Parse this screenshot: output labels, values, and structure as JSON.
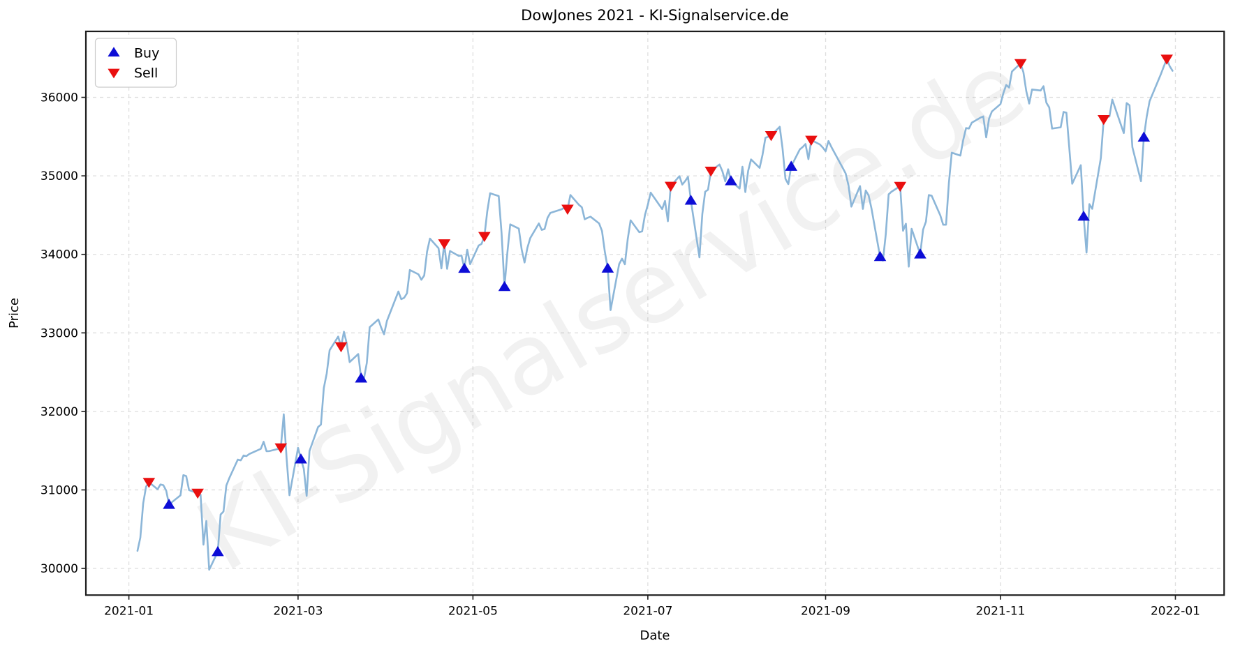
{
  "chart_data": {
    "type": "line",
    "title": "DowJones 2021 - KI-Signalservice.de",
    "xlabel": "Date",
    "ylabel": "Price",
    "watermark": "KI-Signalservice.de",
    "grid": true,
    "legend_position": "upper-left",
    "legend": [
      {
        "label": "Buy",
        "marker": "triangle-up-icon",
        "color": "#0d0dd6"
      },
      {
        "label": "Sell",
        "marker": "triangle-down-icon",
        "color": "#e90f0f"
      }
    ],
    "line_color": "#8cb6d8",
    "xlim": [
      "2020-12-17",
      "2022-01-18"
    ],
    "ylim": [
      29660,
      36840
    ],
    "x_ticks": [
      {
        "date": "2021-01-01",
        "label": "2021-01"
      },
      {
        "date": "2021-03-01",
        "label": "2021-03"
      },
      {
        "date": "2021-05-01",
        "label": "2021-05"
      },
      {
        "date": "2021-07-01",
        "label": "2021-07"
      },
      {
        "date": "2021-09-01",
        "label": "2021-09"
      },
      {
        "date": "2021-11-01",
        "label": "2021-11"
      },
      {
        "date": "2022-01-01",
        "label": "2022-01"
      }
    ],
    "y_ticks": [
      {
        "value": 30000,
        "label": "30000"
      },
      {
        "value": 31000,
        "label": "31000"
      },
      {
        "value": 32000,
        "label": "32000"
      },
      {
        "value": 33000,
        "label": "33000"
      },
      {
        "value": 34000,
        "label": "34000"
      },
      {
        "value": 35000,
        "label": "35000"
      },
      {
        "value": 36000,
        "label": "36000"
      }
    ],
    "price_series": [
      [
        "2021-01-04",
        30224
      ],
      [
        "2021-01-05",
        30392
      ],
      [
        "2021-01-06",
        30829
      ],
      [
        "2021-01-07",
        31041
      ],
      [
        "2021-01-08",
        31098
      ],
      [
        "2021-01-11",
        31008
      ],
      [
        "2021-01-12",
        31069
      ],
      [
        "2021-01-13",
        31061
      ],
      [
        "2021-01-14",
        30992
      ],
      [
        "2021-01-15",
        30814
      ],
      [
        "2021-01-19",
        30931
      ],
      [
        "2021-01-20",
        31188
      ],
      [
        "2021-01-21",
        31176
      ],
      [
        "2021-01-22",
        30997
      ],
      [
        "2021-01-25",
        30960
      ],
      [
        "2021-01-26",
        30937
      ],
      [
        "2021-01-27",
        30303
      ],
      [
        "2021-01-28",
        30603
      ],
      [
        "2021-01-29",
        29983
      ],
      [
        "2021-02-01",
        30212
      ],
      [
        "2021-02-02",
        30687
      ],
      [
        "2021-02-03",
        30724
      ],
      [
        "2021-02-04",
        31056
      ],
      [
        "2021-02-05",
        31148
      ],
      [
        "2021-02-08",
        31386
      ],
      [
        "2021-02-09",
        31376
      ],
      [
        "2021-02-10",
        31438
      ],
      [
        "2021-02-11",
        31430
      ],
      [
        "2021-02-12",
        31458
      ],
      [
        "2021-02-16",
        31523
      ],
      [
        "2021-02-17",
        31613
      ],
      [
        "2021-02-18",
        31493
      ],
      [
        "2021-02-19",
        31494
      ],
      [
        "2021-02-22",
        31522
      ],
      [
        "2021-02-23",
        31537
      ],
      [
        "2021-02-24",
        31962
      ],
      [
        "2021-02-25",
        31402
      ],
      [
        "2021-02-26",
        30932
      ],
      [
        "2021-03-01",
        31536
      ],
      [
        "2021-03-02",
        31392
      ],
      [
        "2021-03-03",
        31270
      ],
      [
        "2021-03-04",
        30924
      ],
      [
        "2021-03-05",
        31496
      ],
      [
        "2021-03-08",
        31802
      ],
      [
        "2021-03-09",
        31833
      ],
      [
        "2021-03-10",
        32297
      ],
      [
        "2021-03-11",
        32486
      ],
      [
        "2021-03-12",
        32779
      ],
      [
        "2021-03-15",
        32953
      ],
      [
        "2021-03-16",
        32825
      ],
      [
        "2021-03-17",
        33015
      ],
      [
        "2021-03-18",
        32862
      ],
      [
        "2021-03-19",
        32628
      ],
      [
        "2021-03-22",
        32731
      ],
      [
        "2021-03-23",
        32423
      ],
      [
        "2021-03-24",
        32420
      ],
      [
        "2021-03-25",
        32619
      ],
      [
        "2021-03-26",
        33073
      ],
      [
        "2021-03-29",
        33171
      ],
      [
        "2021-03-30",
        33067
      ],
      [
        "2021-03-31",
        32982
      ],
      [
        "2021-04-01",
        33153
      ],
      [
        "2021-04-05",
        33527
      ],
      [
        "2021-04-06",
        33430
      ],
      [
        "2021-04-07",
        33446
      ],
      [
        "2021-04-08",
        33504
      ],
      [
        "2021-04-09",
        33801
      ],
      [
        "2021-04-12",
        33745
      ],
      [
        "2021-04-13",
        33677
      ],
      [
        "2021-04-14",
        33731
      ],
      [
        "2021-04-15",
        34036
      ],
      [
        "2021-04-16",
        34201
      ],
      [
        "2021-04-19",
        34078
      ],
      [
        "2021-04-20",
        33821
      ],
      [
        "2021-04-21",
        34137
      ],
      [
        "2021-04-22",
        33815
      ],
      [
        "2021-04-23",
        34043
      ],
      [
        "2021-04-26",
        33981
      ],
      [
        "2021-04-27",
        33985
      ],
      [
        "2021-04-28",
        33820
      ],
      [
        "2021-04-29",
        34060
      ],
      [
        "2021-04-30",
        33875
      ],
      [
        "2021-05-03",
        34113
      ],
      [
        "2021-05-04",
        34133
      ],
      [
        "2021-05-05",
        34230
      ],
      [
        "2021-05-06",
        34548
      ],
      [
        "2021-05-07",
        34778
      ],
      [
        "2021-05-10",
        34743
      ],
      [
        "2021-05-11",
        34269
      ],
      [
        "2021-05-12",
        33588
      ],
      [
        "2021-05-13",
        34021
      ],
      [
        "2021-05-14",
        34382
      ],
      [
        "2021-05-17",
        34328
      ],
      [
        "2021-05-18",
        34061
      ],
      [
        "2021-05-19",
        33896
      ],
      [
        "2021-05-20",
        34084
      ],
      [
        "2021-05-21",
        34208
      ],
      [
        "2021-05-24",
        34394
      ],
      [
        "2021-05-25",
        34312
      ],
      [
        "2021-05-26",
        34323
      ],
      [
        "2021-05-27",
        34465
      ],
      [
        "2021-05-28",
        34529
      ],
      [
        "2021-06-01",
        34575
      ],
      [
        "2021-06-02",
        34600
      ],
      [
        "2021-06-03",
        34577
      ],
      [
        "2021-06-04",
        34756
      ],
      [
        "2021-06-07",
        34630
      ],
      [
        "2021-06-08",
        34600
      ],
      [
        "2021-06-09",
        34447
      ],
      [
        "2021-06-10",
        34466
      ],
      [
        "2021-06-11",
        34480
      ],
      [
        "2021-06-14",
        34394
      ],
      [
        "2021-06-15",
        34299
      ],
      [
        "2021-06-16",
        34034
      ],
      [
        "2021-06-17",
        33823
      ],
      [
        "2021-06-18",
        33290
      ],
      [
        "2021-06-21",
        33877
      ],
      [
        "2021-06-22",
        33945
      ],
      [
        "2021-06-23",
        33874
      ],
      [
        "2021-06-24",
        34196
      ],
      [
        "2021-06-25",
        34434
      ],
      [
        "2021-06-28",
        34283
      ],
      [
        "2021-06-29",
        34292
      ],
      [
        "2021-06-30",
        34503
      ],
      [
        "2021-07-01",
        34633
      ],
      [
        "2021-07-02",
        34786
      ],
      [
        "2021-07-06",
        34577
      ],
      [
        "2021-07-07",
        34681
      ],
      [
        "2021-07-08",
        34422
      ],
      [
        "2021-07-09",
        34870
      ],
      [
        "2021-07-12",
        34996
      ],
      [
        "2021-07-13",
        34888
      ],
      [
        "2021-07-14",
        34933
      ],
      [
        "2021-07-15",
        34987
      ],
      [
        "2021-07-16",
        34688
      ],
      [
        "2021-07-19",
        33962
      ],
      [
        "2021-07-20",
        34512
      ],
      [
        "2021-07-21",
        34798
      ],
      [
        "2021-07-22",
        34823
      ],
      [
        "2021-07-23",
        35062
      ],
      [
        "2021-07-26",
        35144
      ],
      [
        "2021-07-27",
        35058
      ],
      [
        "2021-07-28",
        34930
      ],
      [
        "2021-07-29",
        35084
      ],
      [
        "2021-07-30",
        34935
      ],
      [
        "2021-08-02",
        34838
      ],
      [
        "2021-08-03",
        35116
      ],
      [
        "2021-08-04",
        34793
      ],
      [
        "2021-08-05",
        35064
      ],
      [
        "2021-08-06",
        35209
      ],
      [
        "2021-08-09",
        35102
      ],
      [
        "2021-08-10",
        35265
      ],
      [
        "2021-08-11",
        35485
      ],
      [
        "2021-08-12",
        35499
      ],
      [
        "2021-08-13",
        35515
      ],
      [
        "2021-08-16",
        35625
      ],
      [
        "2021-08-17",
        35343
      ],
      [
        "2021-08-18",
        34961
      ],
      [
        "2021-08-19",
        34895
      ],
      [
        "2021-08-20",
        35120
      ],
      [
        "2021-08-23",
        35336
      ],
      [
        "2021-08-24",
        35366
      ],
      [
        "2021-08-25",
        35405
      ],
      [
        "2021-08-26",
        35213
      ],
      [
        "2021-08-27",
        35456
      ],
      [
        "2021-08-30",
        35400
      ],
      [
        "2021-08-31",
        35361
      ],
      [
        "2021-09-01",
        35313
      ],
      [
        "2021-09-02",
        35444
      ],
      [
        "2021-09-03",
        35369
      ],
      [
        "2021-09-07",
        35100
      ],
      [
        "2021-09-08",
        35031
      ],
      [
        "2021-09-09",
        34879
      ],
      [
        "2021-09-10",
        34608
      ],
      [
        "2021-09-13",
        34870
      ],
      [
        "2021-09-14",
        34578
      ],
      [
        "2021-09-15",
        34814
      ],
      [
        "2021-09-16",
        34751
      ],
      [
        "2021-09-17",
        34585
      ],
      [
        "2021-09-20",
        33970
      ],
      [
        "2021-09-21",
        33920
      ],
      [
        "2021-09-22",
        34258
      ],
      [
        "2021-09-23",
        34765
      ],
      [
        "2021-09-24",
        34798
      ],
      [
        "2021-09-27",
        34869
      ],
      [
        "2021-09-28",
        34300
      ],
      [
        "2021-09-29",
        34390
      ],
      [
        "2021-09-30",
        33844
      ],
      [
        "2021-10-01",
        34326
      ],
      [
        "2021-10-04",
        34003
      ],
      [
        "2021-10-05",
        34315
      ],
      [
        "2021-10-06",
        34417
      ],
      [
        "2021-10-07",
        34755
      ],
      [
        "2021-10-08",
        34746
      ],
      [
        "2021-10-11",
        34496
      ],
      [
        "2021-10-12",
        34378
      ],
      [
        "2021-10-13",
        34378
      ],
      [
        "2021-10-14",
        34913
      ],
      [
        "2021-10-15",
        35295
      ],
      [
        "2021-10-18",
        35258
      ],
      [
        "2021-10-19",
        35457
      ],
      [
        "2021-10-20",
        35609
      ],
      [
        "2021-10-21",
        35603
      ],
      [
        "2021-10-22",
        35677
      ],
      [
        "2021-10-25",
        35741
      ],
      [
        "2021-10-26",
        35757
      ],
      [
        "2021-10-27",
        35490
      ],
      [
        "2021-10-28",
        35730
      ],
      [
        "2021-10-29",
        35820
      ],
      [
        "2021-11-01",
        35914
      ],
      [
        "2021-11-02",
        36053
      ],
      [
        "2021-11-03",
        36158
      ],
      [
        "2021-11-04",
        36124
      ],
      [
        "2021-11-05",
        36328
      ],
      [
        "2021-11-08",
        36432
      ],
      [
        "2021-11-09",
        36320
      ],
      [
        "2021-11-10",
        36080
      ],
      [
        "2021-11-11",
        35921
      ],
      [
        "2021-11-12",
        36100
      ],
      [
        "2021-11-15",
        36087
      ],
      [
        "2021-11-16",
        36142
      ],
      [
        "2021-11-17",
        35931
      ],
      [
        "2021-11-18",
        35871
      ],
      [
        "2021-11-19",
        35602
      ],
      [
        "2021-11-22",
        35619
      ],
      [
        "2021-11-23",
        35814
      ],
      [
        "2021-11-24",
        35804
      ],
      [
        "2021-11-26",
        34899
      ],
      [
        "2021-11-29",
        35136
      ],
      [
        "2021-11-30",
        34484
      ],
      [
        "2021-12-01",
        34022
      ],
      [
        "2021-12-02",
        34640
      ],
      [
        "2021-12-03",
        34580
      ],
      [
        "2021-12-06",
        35227
      ],
      [
        "2021-12-07",
        35719
      ],
      [
        "2021-12-08",
        35755
      ],
      [
        "2021-12-09",
        35755
      ],
      [
        "2021-12-10",
        35971
      ],
      [
        "2021-12-13",
        35651
      ],
      [
        "2021-12-14",
        35545
      ],
      [
        "2021-12-15",
        35927
      ],
      [
        "2021-12-16",
        35898
      ],
      [
        "2021-12-17",
        35365
      ],
      [
        "2021-12-20",
        34932
      ],
      [
        "2021-12-21",
        35492
      ],
      [
        "2021-12-22",
        35754
      ],
      [
        "2021-12-23",
        35950
      ],
      [
        "2021-12-27",
        36302
      ],
      [
        "2021-12-28",
        36398
      ],
      [
        "2021-12-29",
        36488
      ],
      [
        "2021-12-30",
        36398
      ],
      [
        "2021-12-31",
        36338
      ]
    ],
    "buy_signals": [
      [
        "2021-01-15",
        30814
      ],
      [
        "2021-02-01",
        30212
      ],
      [
        "2021-03-02",
        31392
      ],
      [
        "2021-03-23",
        32423
      ],
      [
        "2021-04-28",
        33820
      ],
      [
        "2021-05-12",
        33588
      ],
      [
        "2021-06-17",
        33823
      ],
      [
        "2021-07-16",
        34688
      ],
      [
        "2021-07-30",
        34935
      ],
      [
        "2021-08-20",
        35120
      ],
      [
        "2021-09-20",
        33970
      ],
      [
        "2021-10-04",
        34003
      ],
      [
        "2021-11-30",
        34484
      ],
      [
        "2021-12-21",
        35492
      ]
    ],
    "sell_signals": [
      [
        "2021-01-08",
        31098
      ],
      [
        "2021-01-25",
        30960
      ],
      [
        "2021-02-23",
        31537
      ],
      [
        "2021-03-16",
        32825
      ],
      [
        "2021-04-21",
        34137
      ],
      [
        "2021-05-05",
        34230
      ],
      [
        "2021-06-03",
        34577
      ],
      [
        "2021-07-09",
        34870
      ],
      [
        "2021-07-23",
        35062
      ],
      [
        "2021-08-13",
        35515
      ],
      [
        "2021-08-27",
        35456
      ],
      [
        "2021-09-27",
        34869
      ],
      [
        "2021-11-08",
        36432
      ],
      [
        "2021-12-07",
        35719
      ],
      [
        "2021-12-29",
        36488
      ]
    ]
  }
}
